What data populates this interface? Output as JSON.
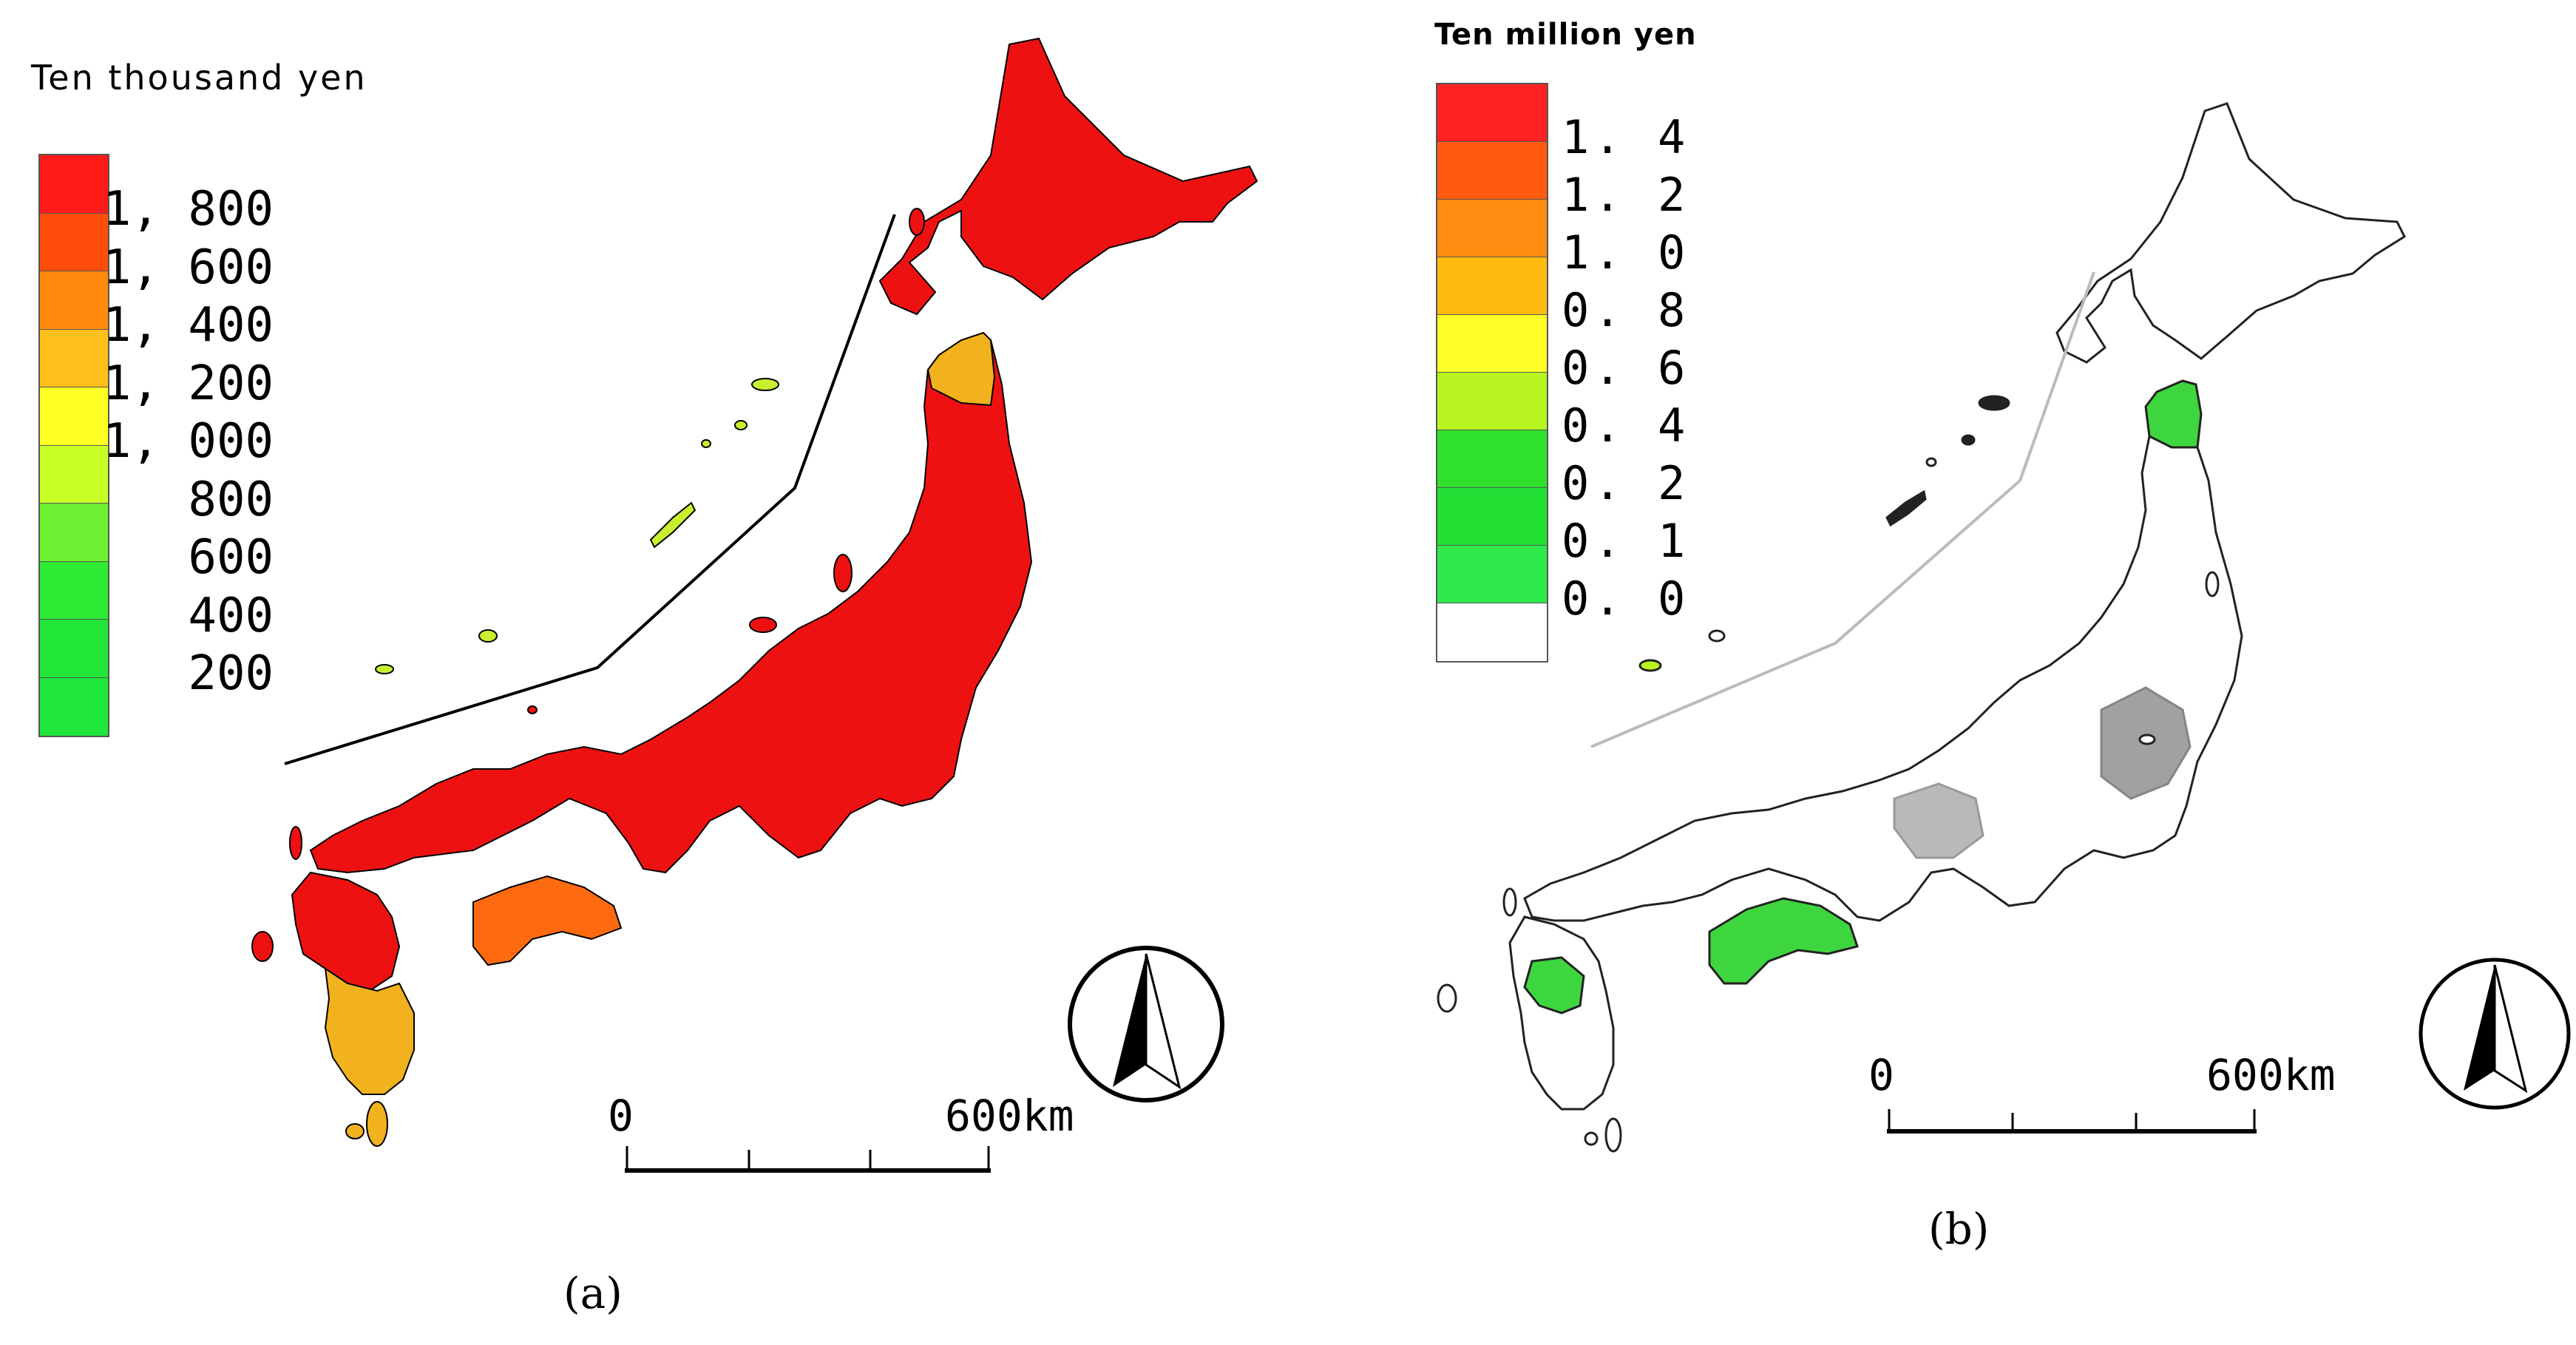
{
  "panels": {
    "a": {
      "legend_title": "Ten thousand yen",
      "legend_labels": [
        "1, 800",
        "1, 600",
        "1, 400",
        "1, 200",
        "1, 000",
        "800",
        "600",
        "400",
        "200"
      ],
      "legend_colors": [
        "#ff1a1a",
        "#ff4d0d",
        "#ff8a0d",
        "#ffbf1a",
        "#ffff26",
        "#c8ff26",
        "#6ef033",
        "#2eea33",
        "#22e638",
        "#1fe63a"
      ],
      "map_colors": {
        "main": "#ee1111",
        "south": "#f2b21e",
        "shikoku": "#ff6a10",
        "islands": "#c8f030"
      },
      "scale": {
        "start": "0",
        "end": "600km"
      },
      "caption": "(a)"
    },
    "b": {
      "legend_title": "Ten million yen",
      "legend_labels": [
        "1. 4",
        "1. 2",
        "1. 0",
        "0. 8",
        "0. 6",
        "0. 4",
        "0. 2",
        "0. 1",
        "0. 0"
      ],
      "legend_colors": [
        "#ff2222",
        "#ff5a10",
        "#ff8c10",
        "#ffbb10",
        "#ffff2a",
        "#b8f520",
        "#2fe02f",
        "#22df33",
        "#2fe84a",
        "#ffffff"
      ],
      "map_colors": {
        "main": "#ffffff",
        "green": "#3ed63e",
        "outline": "#222222"
      },
      "scale": {
        "start": "0",
        "end": "600km"
      },
      "caption": "(b)"
    }
  }
}
